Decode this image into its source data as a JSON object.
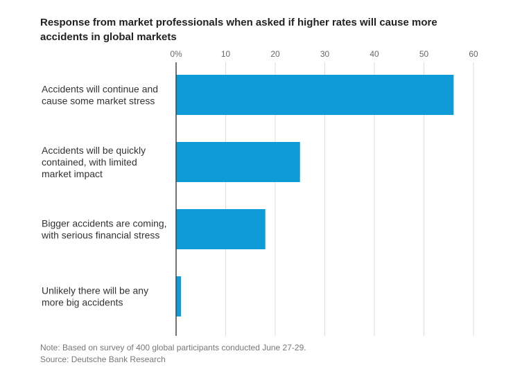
{
  "chart_data": {
    "type": "bar",
    "orientation": "horizontal",
    "title": "Response from market professionals when asked if higher rates will cause more accidents in global markets",
    "categories": [
      [
        "Accidents will continue and",
        "cause some market stress"
      ],
      [
        "Accidents will be quickly",
        "contained, with limited",
        "market impact"
      ],
      [
        "Bigger accidents are coming,",
        "with serious financial stress"
      ],
      [
        "Unlikely there will be any",
        "more big accidents"
      ]
    ],
    "values": [
      56,
      25,
      18,
      1
    ],
    "xlim": [
      0,
      60
    ],
    "ticks": [
      0,
      10,
      20,
      30,
      40,
      50,
      60
    ],
    "tick_labels": [
      "0%",
      "10",
      "20",
      "30",
      "40",
      "50",
      "60"
    ],
    "axis_position": "top",
    "grid": true,
    "bar_color": "#0e9bd8",
    "grid_color": "#dddddd",
    "axis_color": "#444444"
  },
  "footer": {
    "note": "Note: Based on survey of 400 global participants conducted June 27-29.",
    "source": "Source: Deutsche Bank Research"
  }
}
